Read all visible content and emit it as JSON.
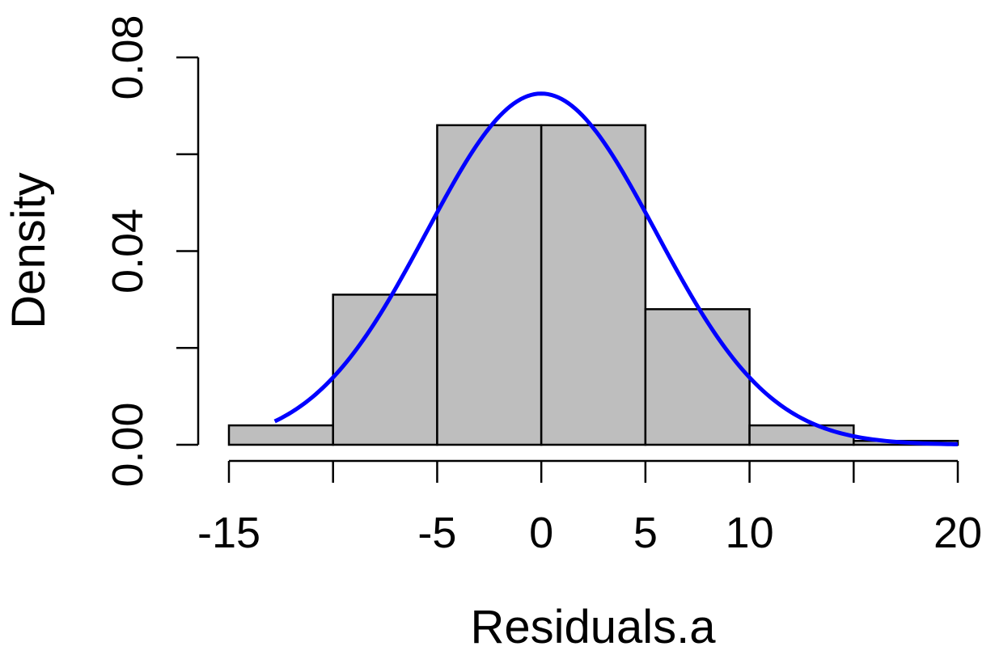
{
  "chart_data": {
    "type": "bar",
    "subtype": "histogram",
    "title": "",
    "xlabel": "Residuals.a",
    "ylabel": "Density",
    "xlim": [
      -15,
      20
    ],
    "ylim": [
      0,
      0.08
    ],
    "bins": [
      {
        "x0": -15,
        "x1": -10,
        "density": 0.004
      },
      {
        "x0": -10,
        "x1": -5,
        "density": 0.031
      },
      {
        "x0": -5,
        "x1": 0,
        "density": 0.066
      },
      {
        "x0": 0,
        "x1": 5,
        "density": 0.066
      },
      {
        "x0": 5,
        "x1": 10,
        "density": 0.028
      },
      {
        "x0": 10,
        "x1": 15,
        "density": 0.004
      },
      {
        "x0": 15,
        "x1": 20,
        "density": 0.0008
      }
    ],
    "x_ticks": [
      -15,
      -10,
      -5,
      0,
      5,
      10,
      15,
      20
    ],
    "x_tick_labels": [
      "-15",
      "",
      "-5",
      "0",
      "5",
      "10",
      "",
      "20"
    ],
    "y_ticks": [
      0,
      0.02,
      0.04,
      0.06,
      0.08
    ],
    "y_tick_labels": [
      "0.00",
      "",
      "0.04",
      "",
      "0.08"
    ],
    "density_curve": {
      "distribution": "normal",
      "mean": 0,
      "sd": 5.5,
      "x_range": [
        -12.8,
        20
      ],
      "color": "#0000ff"
    },
    "bar_fill": "#bebebe",
    "bar_stroke": "#000000",
    "grid": false,
    "legend": "none"
  }
}
